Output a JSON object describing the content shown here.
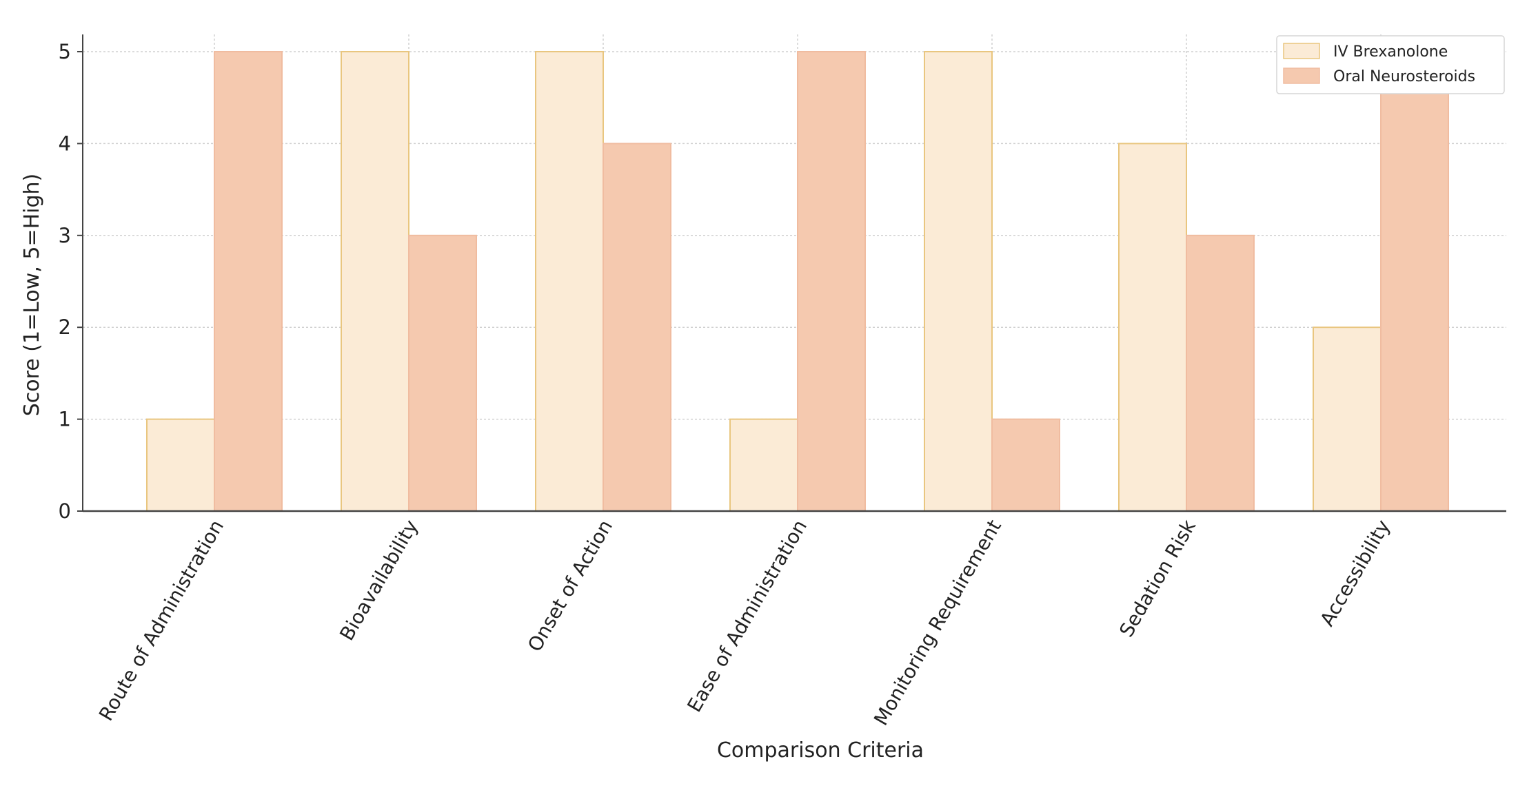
{
  "chart_data": {
    "type": "bar",
    "categories": [
      "Route of Administration",
      "Bioavailability",
      "Onset of Action",
      "Ease of Administration",
      "Monitoring Requirement",
      "Sedation Risk",
      "Accessibility"
    ],
    "series": [
      {
        "name": "IV Brexanolone",
        "values": [
          1,
          5,
          5,
          1,
          5,
          4,
          2
        ],
        "color": "#fbebd6",
        "edge": "#e9c67f"
      },
      {
        "name": "Oral Neurosteroids",
        "values": [
          5,
          3,
          4,
          5,
          1,
          3,
          4.6
        ],
        "color": "#f5c9af",
        "edge": "#f0bca0"
      }
    ],
    "xlabel": "Comparison Criteria",
    "ylabel": "Score (1=Low, 5=High)",
    "ylim": [
      0,
      5.25
    ],
    "yticks": [
      "0",
      "1",
      "2",
      "3",
      "4",
      "5"
    ],
    "grid": true,
    "legend_position": "top-right"
  }
}
